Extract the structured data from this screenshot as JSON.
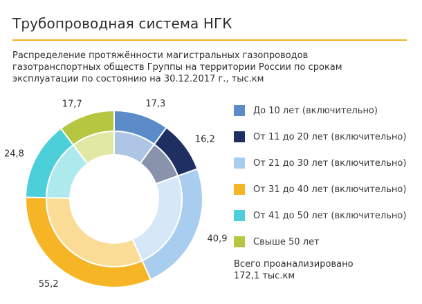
{
  "header": {
    "title": "Трубопроводная система НГК",
    "subtitle_lines": [
      "Распределение протяжённости магистральных газопроводов",
      "газотранспортных обществ Группы на территории России по срокам",
      "эксплуатации по состоянию на 30.12.2017 г., тыс.км"
    ]
  },
  "chart_data": {
    "type": "pie",
    "variant": "donut",
    "start": "top",
    "direction": "clockwise",
    "title": "Распределение протяжённости магистральных газопроводов газотранспортных обществ Группы на территории России по срокам эксплуатации по состоянию на 30.12.2017 г., тыс.км",
    "unit": "тыс.км",
    "categories": [
      "До 10 лет (включительно)",
      "От 11 до 20 лет (включительно)",
      "От 21 до 30 лет (включительно)",
      "От 31 до 40 лет (включительно)",
      "От 41 до 50 лет (включительно)",
      "Свыше 50 лет"
    ],
    "values": [
      17.3,
      16.2,
      40.9,
      55.2,
      24.8,
      17.7
    ],
    "value_labels": [
      "17,3",
      "16,2",
      "40,9",
      "55,2",
      "24,8",
      "17,7"
    ],
    "colors": [
      "#5b8cc9",
      "#1f2f62",
      "#a9cdee",
      "#f6b524",
      "#4ccfd9",
      "#b7c640"
    ],
    "inner_colors": [
      "#aec5e6",
      "#8a93ac",
      "#d6e8f8",
      "#fbdc96",
      "#aee9ee",
      "#e0e8a4"
    ],
    "legend_position": "right",
    "total_lines": [
      "Всего проанализировано",
      "172,1 тыс.км"
    ]
  }
}
